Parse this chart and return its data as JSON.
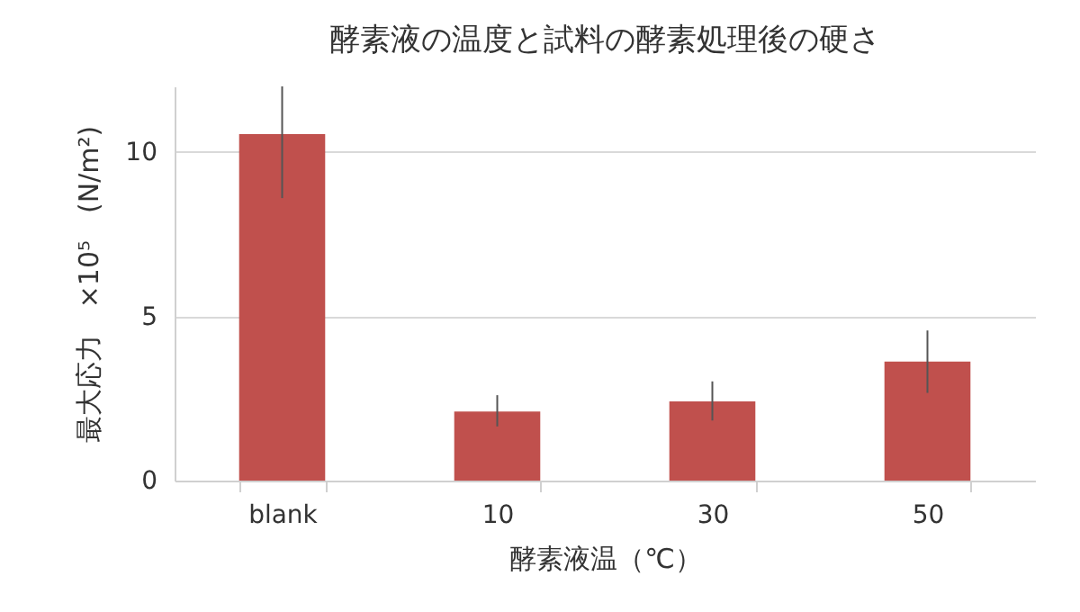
{
  "chart_data": {
    "type": "bar",
    "title": "酵素液の温度と試料の酵素処理後の硬さ",
    "xlabel": "酵素液温（℃）",
    "ylabel": "最大応力　×10⁵　(N/m²)",
    "categories": [
      "blank",
      "10",
      "30",
      "50"
    ],
    "values": [
      10.55,
      2.1,
      2.41,
      3.62
    ],
    "errors": [
      [
        8.6,
        12.0
      ],
      [
        1.65,
        2.6
      ],
      [
        1.83,
        3.02
      ],
      [
        2.67,
        4.57
      ]
    ],
    "color": "#c0504d",
    "ylim": [
      0,
      12
    ],
    "yticks": [
      0,
      5,
      10
    ],
    "grid": "y"
  }
}
